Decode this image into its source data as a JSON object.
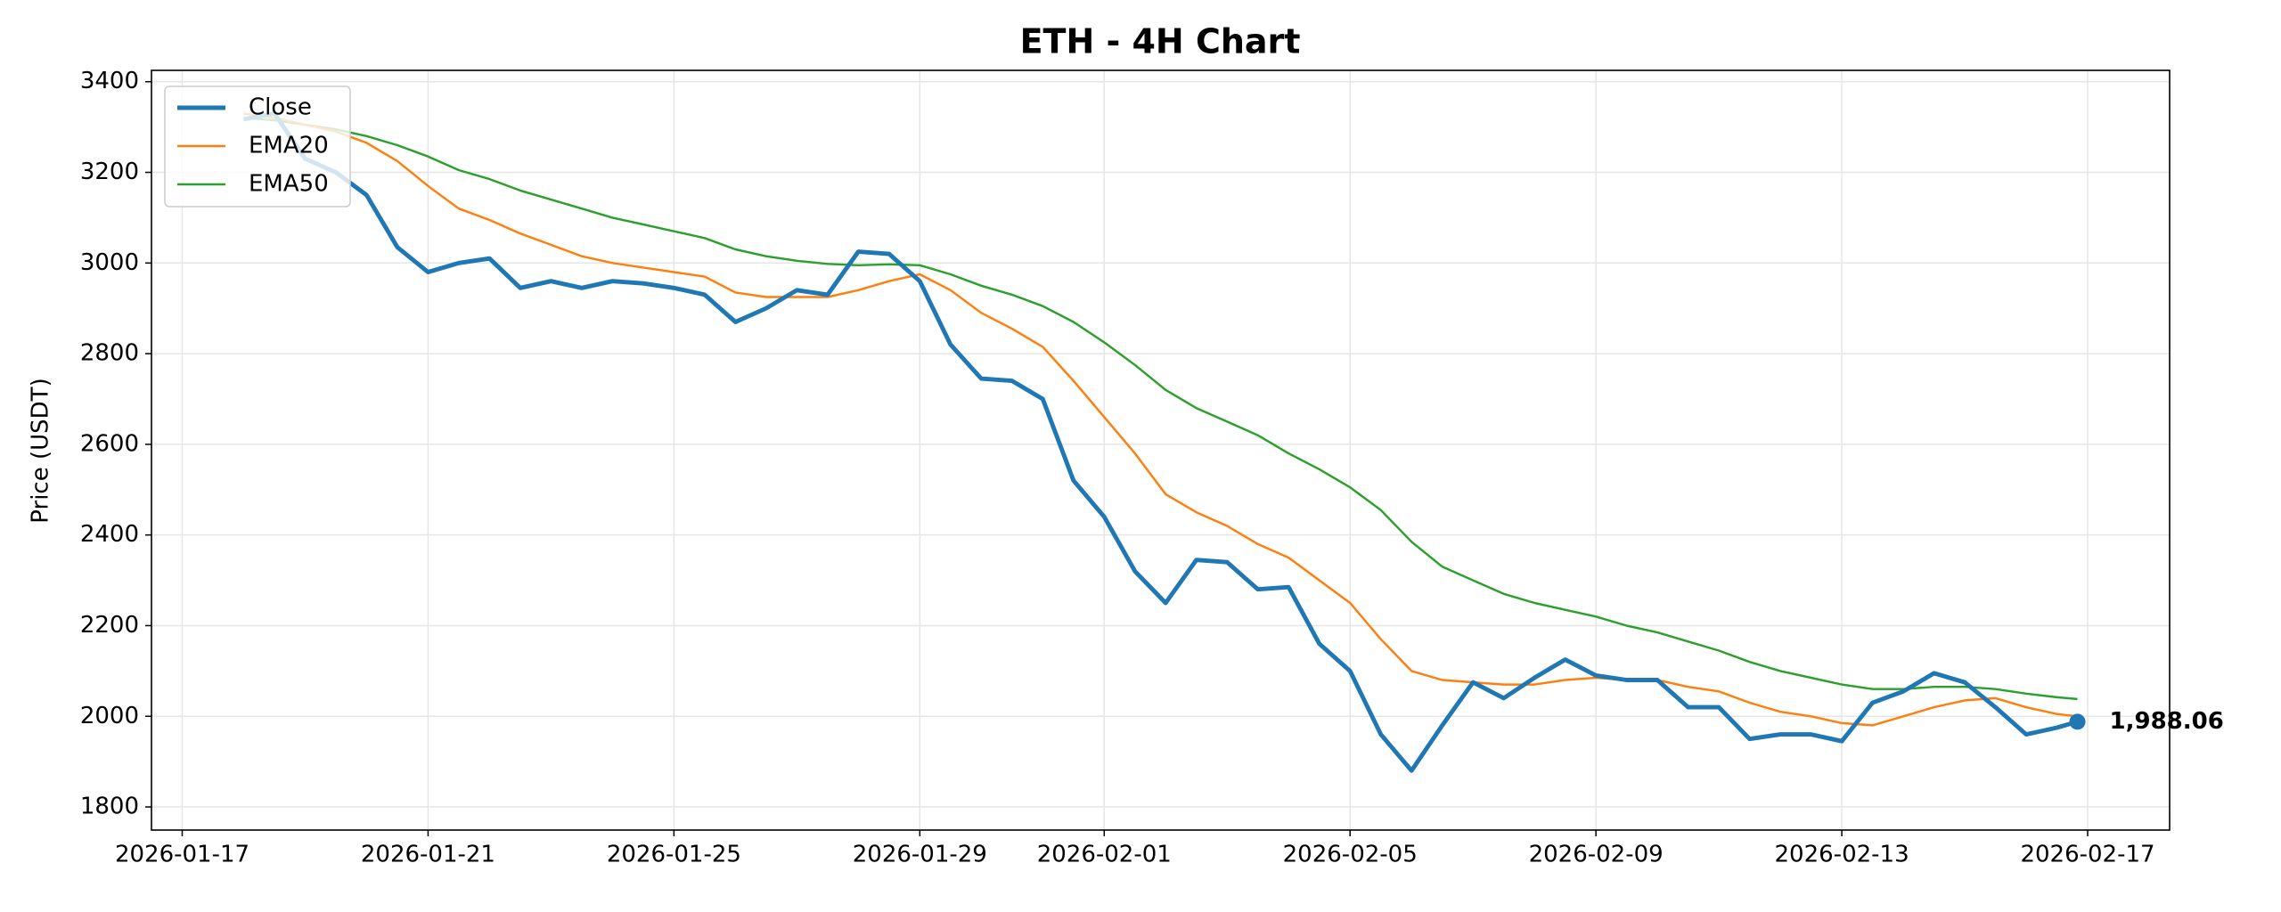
{
  "chart_data": {
    "type": "line",
    "title": "ETH - 4H Chart",
    "ylabel": "Price (USDT)",
    "x": [
      "2026-01-18 00:00",
      "2026-01-18 12:00",
      "2026-01-19 00:00",
      "2026-01-19 12:00",
      "2026-01-20 00:00",
      "2026-01-20 12:00",
      "2026-01-21 00:00",
      "2026-01-21 12:00",
      "2026-01-22 00:00",
      "2026-01-22 12:00",
      "2026-01-23 00:00",
      "2026-01-23 12:00",
      "2026-01-24 00:00",
      "2026-01-24 12:00",
      "2026-01-25 00:00",
      "2026-01-25 12:00",
      "2026-01-26 00:00",
      "2026-01-26 12:00",
      "2026-01-27 00:00",
      "2026-01-27 12:00",
      "2026-01-28 00:00",
      "2026-01-28 12:00",
      "2026-01-29 00:00",
      "2026-01-29 12:00",
      "2026-01-30 00:00",
      "2026-01-30 12:00",
      "2026-01-31 00:00",
      "2026-01-31 12:00",
      "2026-02-01 00:00",
      "2026-02-01 12:00",
      "2026-02-02 00:00",
      "2026-02-02 12:00",
      "2026-02-03 00:00",
      "2026-02-03 12:00",
      "2026-02-04 00:00",
      "2026-02-04 12:00",
      "2026-02-05 00:00",
      "2026-02-05 12:00",
      "2026-02-06 00:00",
      "2026-02-06 12:00",
      "2026-02-07 00:00",
      "2026-02-07 12:00",
      "2026-02-08 00:00",
      "2026-02-08 12:00",
      "2026-02-09 00:00",
      "2026-02-09 12:00",
      "2026-02-10 00:00",
      "2026-02-10 12:00",
      "2026-02-11 00:00",
      "2026-02-11 12:00",
      "2026-02-12 00:00",
      "2026-02-12 12:00",
      "2026-02-13 00:00",
      "2026-02-13 12:00",
      "2026-02-14 00:00",
      "2026-02-14 12:00",
      "2026-02-15 00:00",
      "2026-02-15 12:00",
      "2026-02-16 00:00",
      "2026-02-16 12:00",
      "2026-02-16 20:00"
    ],
    "series": [
      {
        "name": "Close",
        "color": "#1f77b4",
        "width": 3,
        "values": [
          3317,
          3330,
          3230,
          3200,
          3150,
          3035,
          2980,
          3000,
          3010,
          2945,
          2960,
          2945,
          2960,
          2955,
          2945,
          2930,
          2870,
          2900,
          2940,
          2930,
          3025,
          3020,
          2960,
          2820,
          2745,
          2740,
          2700,
          2520,
          2440,
          2320,
          2250,
          2345,
          2340,
          2280,
          2285,
          2160,
          2100,
          1960,
          1880,
          1980,
          2075,
          2040,
          2085,
          2125,
          2090,
          2080,
          2080,
          2020,
          2020,
          1950,
          1960,
          1960,
          1945,
          2030,
          2055,
          2095,
          2075,
          2020,
          1960,
          1975,
          1988.06
        ],
        "value_labels": [
          null,
          null,
          null,
          null,
          null,
          null,
          null,
          null,
          null,
          null,
          null,
          null,
          null,
          null,
          null,
          null,
          null,
          null,
          null,
          null,
          null,
          null,
          null,
          null,
          null,
          null,
          null,
          null,
          null,
          null,
          null,
          null,
          null,
          null,
          null,
          null,
          null,
          null,
          null,
          null,
          null,
          null,
          null,
          null,
          null,
          null,
          null,
          null,
          null,
          null,
          null,
          null,
          null,
          null,
          null,
          null,
          null,
          null,
          null,
          null,
          "1,988.06"
        ]
      },
      {
        "name": "EMA20",
        "color": "#ff7f0e",
        "width": 1.5,
        "values": [
          3330,
          3320,
          3305,
          3290,
          3265,
          3225,
          3170,
          3120,
          3095,
          3065,
          3040,
          3015,
          3000,
          2990,
          2980,
          2970,
          2935,
          2925,
          2925,
          2925,
          2940,
          2960,
          2975,
          2940,
          2890,
          2855,
          2815,
          2740,
          2660,
          2580,
          2490,
          2450,
          2420,
          2380,
          2350,
          2300,
          2250,
          2170,
          2100,
          2080,
          2075,
          2070,
          2070,
          2080,
          2085,
          2080,
          2080,
          2065,
          2055,
          2030,
          2010,
          2000,
          1985,
          1980,
          2000,
          2020,
          2035,
          2040,
          2020,
          2005,
          2000
        ]
      },
      {
        "name": "EMA50",
        "color": "#2ca02c",
        "width": 1.5,
        "values": [
          3320,
          3315,
          3305,
          3295,
          3280,
          3260,
          3235,
          3205,
          3185,
          3160,
          3140,
          3120,
          3100,
          3085,
          3070,
          3055,
          3030,
          3015,
          3005,
          2998,
          2995,
          2997,
          2995,
          2975,
          2950,
          2930,
          2905,
          2870,
          2825,
          2775,
          2720,
          2680,
          2650,
          2620,
          2580,
          2545,
          2505,
          2455,
          2385,
          2330,
          2300,
          2270,
          2250,
          2235,
          2220,
          2200,
          2185,
          2165,
          2145,
          2120,
          2100,
          2085,
          2070,
          2060,
          2060,
          2065,
          2065,
          2060,
          2050,
          2042,
          2038
        ]
      }
    ],
    "xlim": [
      "2026-01-16 12:00",
      "2026-02-18 08:00"
    ],
    "xticks": [
      "2026-01-17",
      "2026-01-21",
      "2026-01-25",
      "2026-01-29",
      "2026-02-01",
      "2026-02-05",
      "2026-02-09",
      "2026-02-13",
      "2026-02-17"
    ],
    "ylim": [
      1749,
      3425
    ],
    "yticks": [
      1800,
      2000,
      2200,
      2400,
      2600,
      2800,
      3000,
      3200,
      3400
    ],
    "grid": true,
    "legend": "upper left"
  }
}
